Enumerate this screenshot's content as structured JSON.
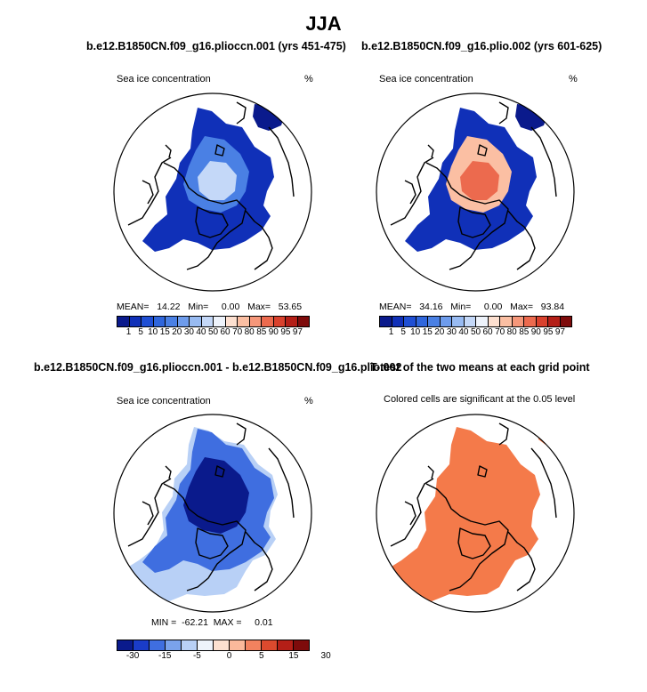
{
  "title": "JJA",
  "panels": [
    {
      "title": "b.e12.B1850CN.f09_g16.plioccn.001 (yrs 451-475)",
      "left_label": "Sea ice concentration",
      "right_label": "%",
      "stats": "MEAN=   14.22   Min=     0.00   Max=   53.65",
      "legend_labels": [
        "1",
        "5",
        "10",
        "15",
        "20",
        "30",
        "40",
        "50",
        "60",
        "70",
        "80",
        "85",
        "90",
        "95",
        "97"
      ],
      "fill_style": "blue"
    },
    {
      "title": "b.e12.B1850CN.f09_g16.plio.002 (yrs 601-625)",
      "left_label": "Sea ice concentration",
      "right_label": "%",
      "stats": "MEAN=   34.16   Min=     0.00   Max=   93.84",
      "legend_labels": [
        "1",
        "5",
        "10",
        "15",
        "20",
        "30",
        "40",
        "50",
        "60",
        "70",
        "80",
        "85",
        "90",
        "95",
        "97"
      ],
      "fill_style": "red"
    },
    {
      "title": "b.e12.B1850CN.f09_g16.plioccn.001 - b.e12.B1850CN.f09_g16.plio.002",
      "left_label": "Sea ice concentration",
      "right_label": "%",
      "stats": "MIN =  -62.21  MAX =     0.01",
      "legend_labels": [
        "-30",
        "-15",
        "-5",
        "0",
        "5",
        "15",
        "30"
      ],
      "fill_style": "diff"
    },
    {
      "title": "T-test of the two means at each grid point",
      "left_label": "Colored cells are significant at the 0.05 level",
      "right_label": "",
      "fill_style": "ttest"
    }
  ],
  "colors": {
    "seq_scale": [
      "#0a1a8c",
      "#1030b8",
      "#1f4fd4",
      "#2f66dc",
      "#4a80e4",
      "#6e9cec",
      "#98bbf2",
      "#c4d8f8",
      "#eef3fb",
      "#fde0d0",
      "#fbbfa3",
      "#f5977a",
      "#ec6a4e",
      "#d9412d",
      "#b41f17",
      "#7e0b0b"
    ],
    "diff_scale": [
      "#0a1a8c",
      "#1a3cc8",
      "#3f6ee0",
      "#7aa2ec",
      "#b8d0f6",
      "#eef3fb",
      "#fde0d0",
      "#fbb99b",
      "#f2825f",
      "#dc4a2e",
      "#b41f17",
      "#7e0b0b"
    ],
    "ttest_fill": "#f47a4a",
    "outline": "#000000"
  }
}
